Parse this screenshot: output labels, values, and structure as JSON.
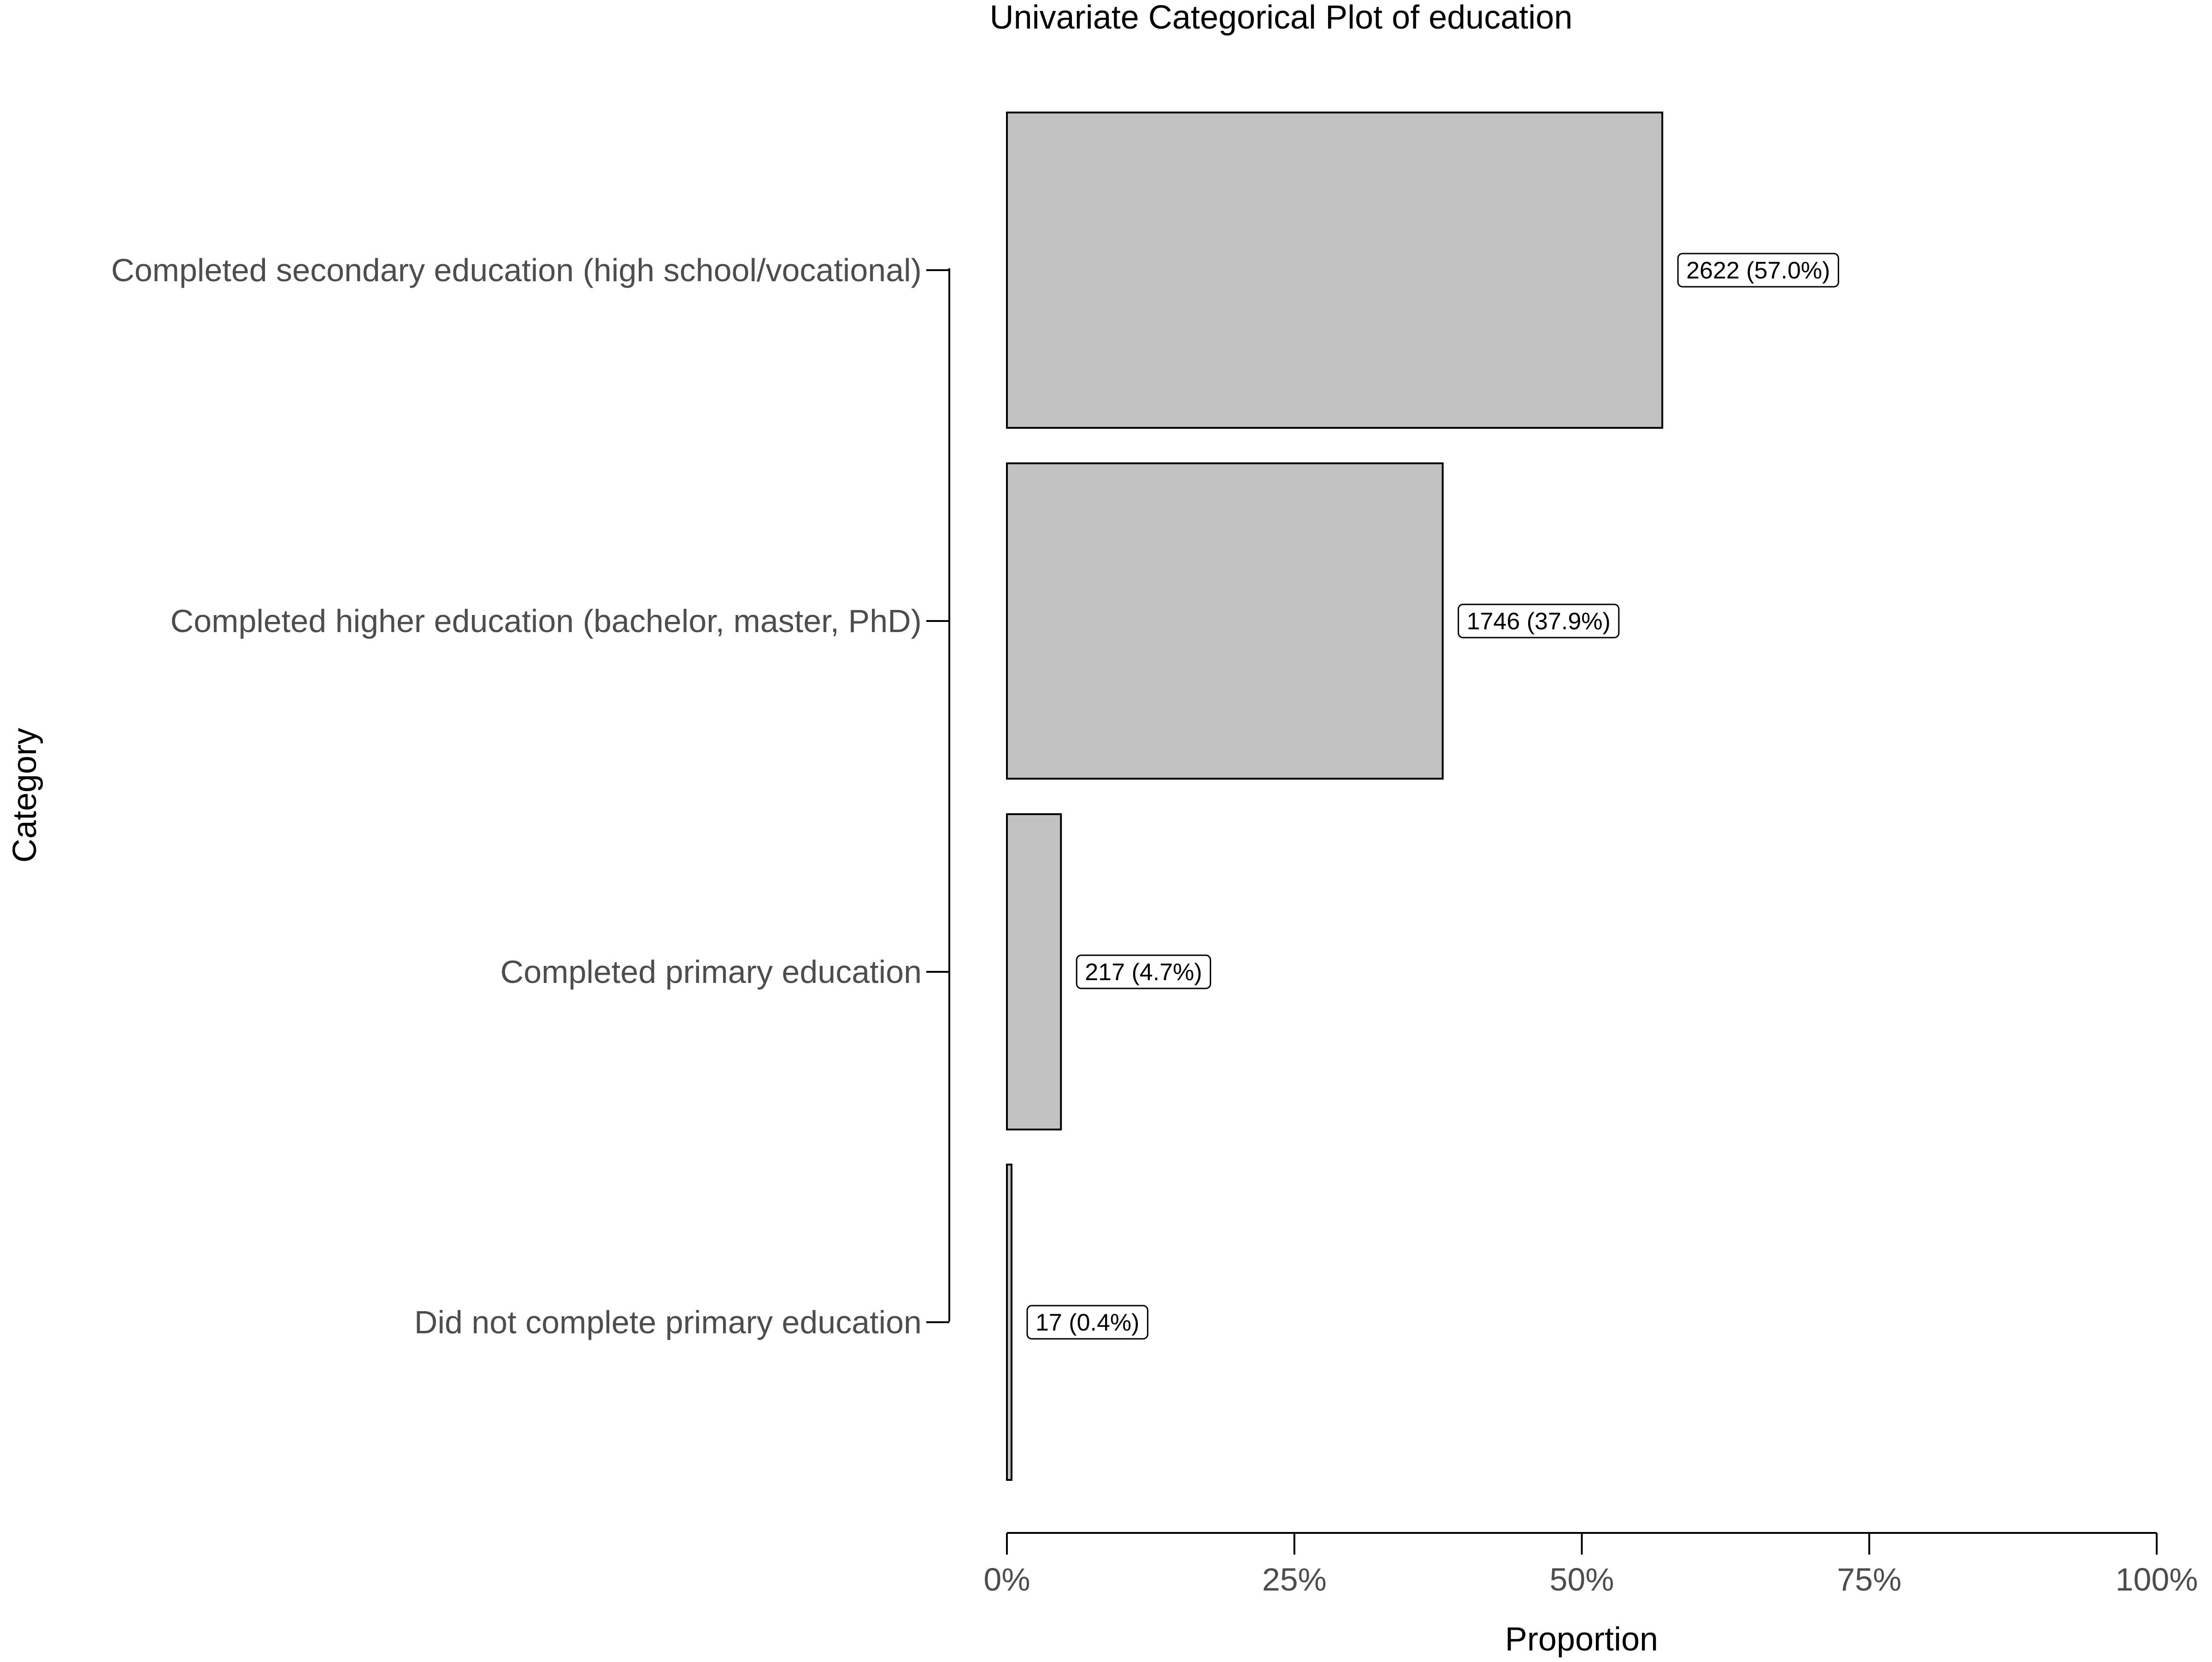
{
  "chart_data": {
    "type": "bar",
    "orientation": "horizontal",
    "title": "Univariate Categorical Plot of education",
    "xlabel": "Proportion",
    "ylabel": "Category",
    "xlim": [
      0,
      1
    ],
    "x_ticks": [
      {
        "value": 0,
        "label": "0%"
      },
      {
        "value": 0.25,
        "label": "25%"
      },
      {
        "value": 0.5,
        "label": "50%"
      },
      {
        "value": 0.75,
        "label": "75%"
      },
      {
        "value": 1,
        "label": "100%"
      }
    ],
    "categories": [
      "Completed secondary education (high school/vocational)",
      "Completed higher education (bachelor, master, PhD)",
      "Completed primary education",
      "Did not complete primary education"
    ],
    "counts": [
      2622,
      1746,
      217,
      17
    ],
    "values": [
      0.57,
      0.379,
      0.047,
      0.004
    ],
    "data_labels": [
      "2622 (57.0%)",
      "1746 (37.9%)",
      "217 (4.7%)",
      "17 (0.4%)"
    ],
    "grid": false,
    "legend": "none",
    "colors": {
      "bar_fill": "#c2c2c2",
      "bar_stroke": "#000000",
      "label_box_fill": "#ffffff",
      "axis": "#000000"
    }
  }
}
